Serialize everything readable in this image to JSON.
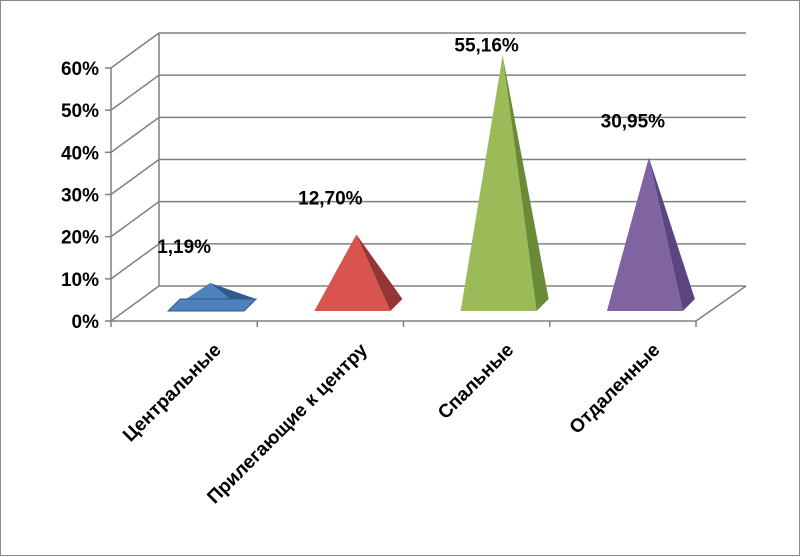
{
  "chart_data": {
    "type": "bar",
    "style": "3d-pyramid",
    "title": "",
    "xlabel": "",
    "ylabel": "",
    "categories": [
      "Центральные",
      "Прилегающие к центру",
      "Спальные",
      "Отдаленные"
    ],
    "values": [
      1.19,
      12.7,
      55.16,
      30.95
    ],
    "data_labels": [
      "1,19%",
      "12,70%",
      "55,16%",
      "30,95%"
    ],
    "ylim": [
      0,
      60
    ],
    "yticks": [
      "0%",
      "10%",
      "20%",
      "30%",
      "40%",
      "50%",
      "60%"
    ],
    "grid": true,
    "legend": "none",
    "colors": [
      "#4f81bd",
      "#d9534f",
      "#9bbb59",
      "#8064a2"
    ],
    "dark_colors": [
      "#2e5a8e",
      "#963634",
      "#6a8a37",
      "#5b4580"
    ]
  }
}
